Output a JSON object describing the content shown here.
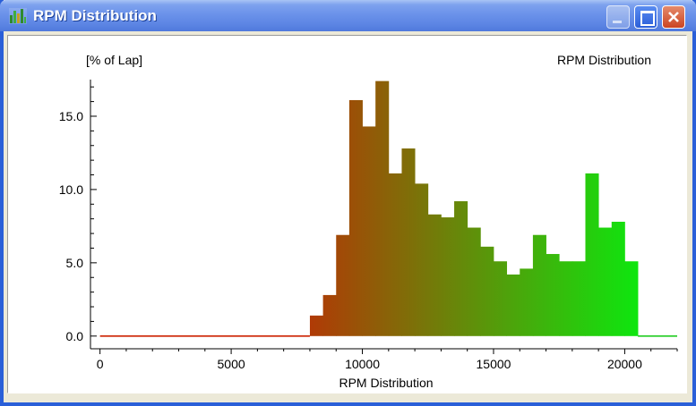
{
  "window": {
    "title": "RPM Distribution",
    "icon": "histogram-app-icon",
    "buttons": {
      "minimize": "minimize-icon",
      "maximize": "maximize-icon",
      "close": "close-icon"
    }
  },
  "chart_data": {
    "type": "bar",
    "title": "RPM Distribution",
    "xlabel": "RPM Distribution",
    "ylabel": "[% of Lap]",
    "xlim": [
      -500,
      22000
    ],
    "ylim": [
      -0.5,
      17.5
    ],
    "x_ticks": [
      0,
      5000,
      10000,
      15000,
      20000
    ],
    "x_tick_labels": [
      "0",
      "5000",
      "10000",
      "15000",
      "20000"
    ],
    "y_ticks": [
      0,
      5,
      10,
      15
    ],
    "y_tick_labels": [
      "0.0",
      "5.0",
      "10.0",
      "15.0"
    ],
    "grid": false,
    "bin_width": 500,
    "bars": [
      {
        "x": 8000,
        "value": 1.4
      },
      {
        "x": 8500,
        "value": 2.8
      },
      {
        "x": 9000,
        "value": 6.9
      },
      {
        "x": 9500,
        "value": 16.1
      },
      {
        "x": 10000,
        "value": 14.3
      },
      {
        "x": 10500,
        "value": 17.4
      },
      {
        "x": 11000,
        "value": 11.1
      },
      {
        "x": 11500,
        "value": 12.8
      },
      {
        "x": 12000,
        "value": 10.4
      },
      {
        "x": 12500,
        "value": 8.3
      },
      {
        "x": 13000,
        "value": 8.1
      },
      {
        "x": 13500,
        "value": 9.2
      },
      {
        "x": 14000,
        "value": 7.4
      },
      {
        "x": 14500,
        "value": 6.1
      },
      {
        "x": 15000,
        "value": 5.1
      },
      {
        "x": 15500,
        "value": 4.2
      },
      {
        "x": 16000,
        "value": 4.6
      },
      {
        "x": 16500,
        "value": 6.9
      },
      {
        "x": 17000,
        "value": 5.6
      },
      {
        "x": 17500,
        "value": 5.1
      },
      {
        "x": 18000,
        "value": 5.1
      },
      {
        "x": 18500,
        "value": 11.1
      },
      {
        "x": 19000,
        "value": 7.4
      },
      {
        "x": 19500,
        "value": 7.8
      },
      {
        "x": 20000,
        "value": 5.1
      }
    ],
    "baseline_segments": [
      {
        "from": 0,
        "to": 8000,
        "color": "#cc2200"
      },
      {
        "from": 20500,
        "to": 22000,
        "color": "#22cc22"
      }
    ],
    "gradient": {
      "start_x": 8000,
      "end_x": 20500,
      "start_color": "#b03a06",
      "end_color": "#0ee60e"
    }
  }
}
